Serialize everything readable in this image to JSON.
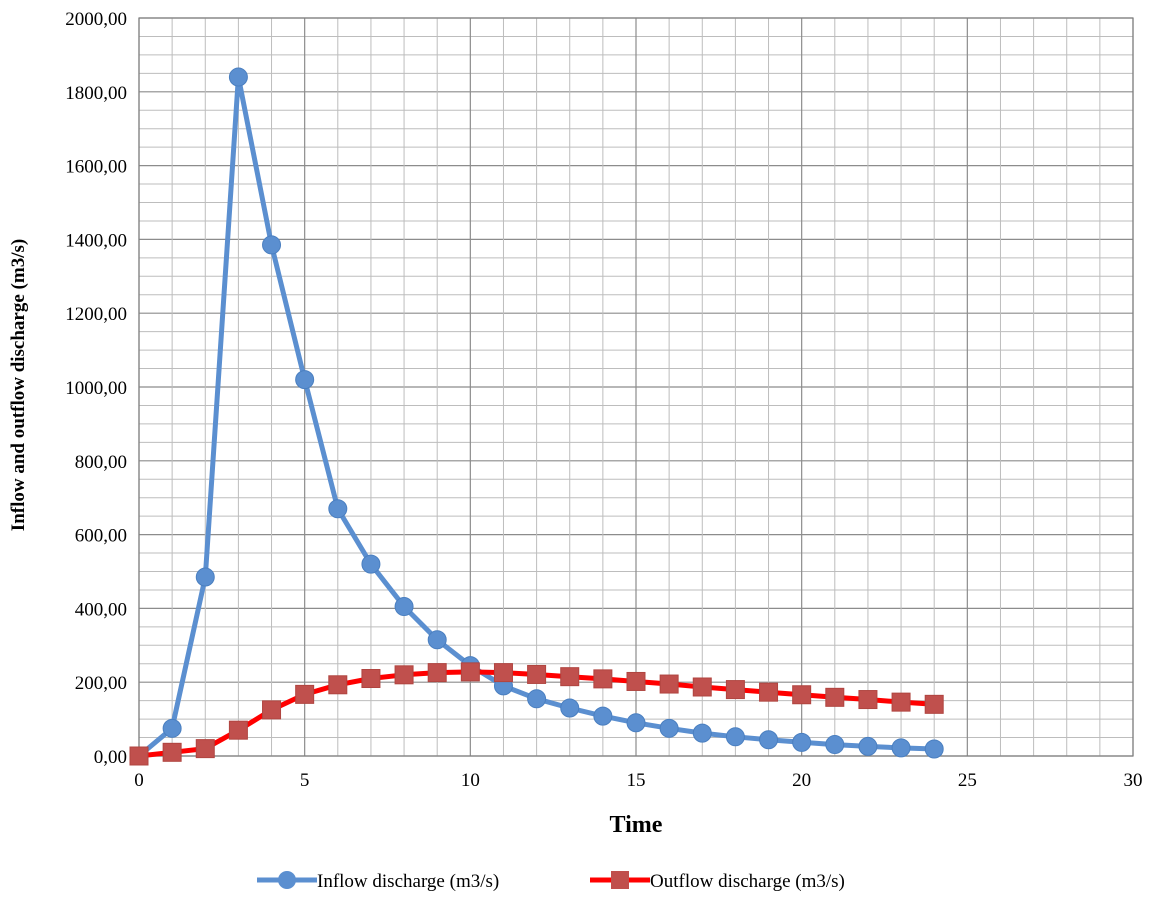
{
  "chart_data": {
    "type": "line",
    "xlabel": "Time",
    "ylabel": "Inflow and outflow discharge (m3/s)",
    "xlim": [
      0,
      30
    ],
    "ylim": [
      0,
      2000
    ],
    "x_ticks": [
      "0",
      "5",
      "10",
      "15",
      "20",
      "25",
      "30"
    ],
    "y_ticks": [
      "0,00",
      "200,00",
      "400,00",
      "600,00",
      "800,00",
      "1000,00",
      "1200,00",
      "1400,00",
      "1600,00",
      "1800,00",
      "2000,00"
    ],
    "grid": true,
    "legend_position": "bottom",
    "series": [
      {
        "name": "Inflow discharge (m3/s)",
        "color": "#5b8fd0",
        "marker": "circle",
        "x": [
          0,
          1,
          2,
          3,
          4,
          5,
          6,
          7,
          8,
          9,
          10,
          11,
          12,
          13,
          14,
          15,
          16,
          17,
          18,
          19,
          20,
          21,
          22,
          23,
          24
        ],
        "values": [
          0,
          75,
          485,
          1840,
          1385,
          1020,
          670,
          520,
          405,
          315,
          245,
          190,
          155,
          130,
          108,
          90,
          75,
          62,
          52,
          44,
          37,
          31,
          26,
          22,
          19
        ]
      },
      {
        "name": "Outflow discharge (m3/s)",
        "color": "#ff0000",
        "marker_color": "#c0504d",
        "marker": "square",
        "x": [
          0,
          1,
          2,
          3,
          4,
          5,
          6,
          7,
          8,
          9,
          10,
          11,
          12,
          13,
          14,
          15,
          16,
          17,
          18,
          19,
          20,
          21,
          22,
          23,
          24
        ],
        "values": [
          0,
          10,
          20,
          70,
          125,
          167,
          193,
          210,
          220,
          226,
          228,
          226,
          221,
          215,
          209,
          202,
          195,
          187,
          180,
          173,
          166,
          159,
          153,
          146,
          140
        ]
      }
    ]
  }
}
